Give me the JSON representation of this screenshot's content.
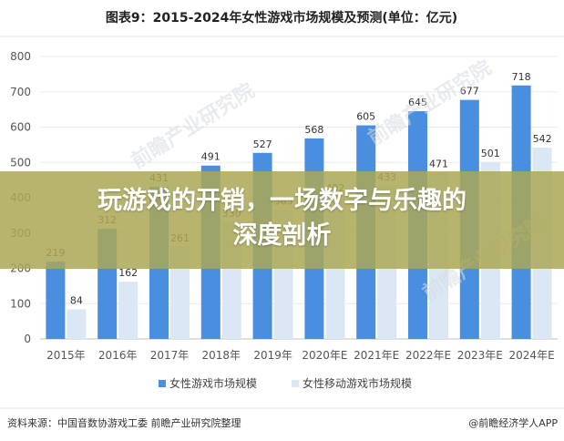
{
  "overlay": {
    "line1": "玩游戏的开销，一场数字与乐趣的",
    "line2": "深度剖析"
  },
  "source": "资料来源：中国音数协游戏工委 前瞻产业研究院整理",
  "brand": "@前瞻经济学人APP",
  "watermark": "前瞻产业研究院",
  "colors": {
    "series1": "#4a8ee0",
    "series2": "#dbe7f5",
    "overlay": "#aba856"
  },
  "chart_data": {
    "type": "bar",
    "title": "图表9：2015-2024年女性游戏市场规模及预测(单位：亿元)",
    "categories": [
      "2015年",
      "2016年",
      "2017年",
      "2018年",
      "2019年",
      "2020年E",
      "2021年E",
      "2022年E",
      "2023年E",
      "2024年E"
    ],
    "series": [
      {
        "name": "女性游戏市场规模",
        "values": [
          219,
          312,
          431,
          491,
          527,
          568,
          605,
          645,
          677,
          718
        ]
      },
      {
        "name": "女性移动游戏市场规模",
        "values": [
          84,
          162,
          261,
          330,
          365,
          402,
          433,
          471,
          501,
          542
        ]
      }
    ],
    "ylim": [
      0,
      800
    ],
    "yticks": [
      0,
      100,
      200,
      300,
      400,
      500,
      600,
      700,
      800
    ],
    "grid": true,
    "legend": "bottom"
  }
}
